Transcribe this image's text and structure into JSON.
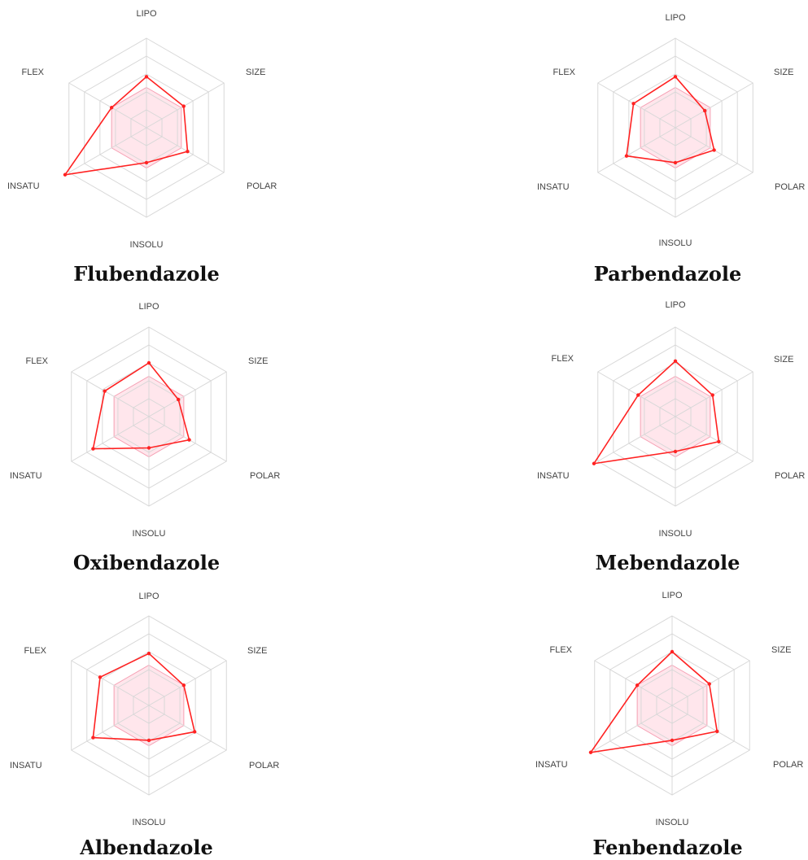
{
  "chart_data": [
    {
      "type": "radar",
      "title": "Flubendazole",
      "axes": [
        "LIPO",
        "SIZE",
        "POLAR",
        "INSOLU",
        "INSATU",
        "FLEX"
      ],
      "optimal_range": [
        0.45,
        0.45,
        0.45,
        0.45,
        0.45,
        0.45
      ],
      "series": [
        {
          "values": [
            0.57,
            0.48,
            0.53,
            0.39,
            1.05,
            0.45
          ]
        }
      ]
    },
    {
      "type": "radar",
      "title": "Parbendazole",
      "axes": [
        "LIPO",
        "SIZE",
        "POLAR",
        "INSOLU",
        "INSATU",
        "FLEX"
      ],
      "optimal_range": [
        0.45,
        0.45,
        0.45,
        0.45,
        0.45,
        0.45
      ],
      "series": [
        {
          "values": [
            0.57,
            0.38,
            0.5,
            0.39,
            0.63,
            0.54
          ]
        }
      ]
    },
    {
      "type": "radar",
      "title": "Oxibendazole",
      "axes": [
        "LIPO",
        "SIZE",
        "POLAR",
        "INSOLU",
        "INSATU",
        "FLEX"
      ],
      "optimal_range": [
        0.45,
        0.45,
        0.45,
        0.45,
        0.45,
        0.45
      ],
      "series": [
        {
          "values": [
            0.6,
            0.38,
            0.52,
            0.35,
            0.72,
            0.57
          ]
        }
      ]
    },
    {
      "type": "radar",
      "title": "Mebendazole",
      "axes": [
        "LIPO",
        "SIZE",
        "POLAR",
        "INSOLU",
        "INSATU",
        "FLEX"
      ],
      "optimal_range": [
        0.45,
        0.45,
        0.45,
        0.45,
        0.45,
        0.45
      ],
      "series": [
        {
          "values": [
            0.62,
            0.48,
            0.56,
            0.39,
            1.05,
            0.48
          ]
        }
      ]
    },
    {
      "type": "radar",
      "title": "Albendazole",
      "axes": [
        "LIPO",
        "SIZE",
        "POLAR",
        "INSOLU",
        "INSATU",
        "FLEX"
      ],
      "optimal_range": [
        0.45,
        0.45,
        0.45,
        0.45,
        0.45,
        0.45
      ],
      "series": [
        {
          "values": [
            0.58,
            0.45,
            0.59,
            0.39,
            0.72,
            0.63
          ]
        }
      ]
    },
    {
      "type": "radar",
      "title": "Fenbendazole",
      "axes": [
        "LIPO",
        "SIZE",
        "POLAR",
        "INSOLU",
        "INSATU",
        "FLEX"
      ],
      "optimal_range": [
        0.45,
        0.45,
        0.45,
        0.45,
        0.45,
        0.45
      ],
      "series": [
        {
          "values": [
            0.6,
            0.48,
            0.58,
            0.39,
            1.05,
            0.45
          ]
        }
      ]
    }
  ],
  "colors": {
    "series_line": "#ff2222",
    "optimal_fill": "#ffd6e0",
    "optimal_stroke": "#f5a0b4",
    "grid": "#d8d8d8"
  }
}
